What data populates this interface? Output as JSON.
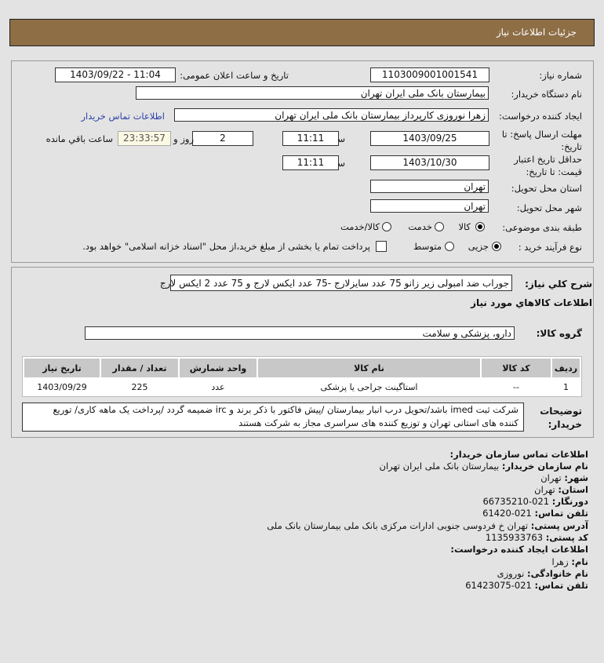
{
  "header": {
    "title": "جزئیات اطلاعات نیاز"
  },
  "form": {
    "need_number_label": "شماره نیاز:",
    "need_number": "1103009001001541",
    "announce_label": "تاریخ و ساعت اعلان عمومی:",
    "announce_value": "1403/09/22 - 11:04",
    "buyer_label": "نام دستگاه خریدار:",
    "buyer": "بیمارستان بانک ملی ایران تهران",
    "requester_label": "ایجاد کننده درخواست:",
    "requester": "زهرا نوروزی کارپرداز بیمارستان بانک ملی ایران تهران",
    "contact_link": "اطلاعات تماس خریدار",
    "deadline_label_1": "مهلت ارسال پاسخ: تا",
    "deadline_label_2": "تاریخ:",
    "deadline_date": "1403/09/25",
    "time_label": "ساعت",
    "deadline_time": "11:11",
    "days": "2",
    "days_label": "روز و",
    "remaining": "23:33:57",
    "remaining_label": "ساعت باقي مانده",
    "validity_label_1": "حداقل تاریخ اعتبار",
    "validity_label_2": "قیمت: تا تاریخ:",
    "validity_date": "1403/10/30",
    "validity_time": "11:11",
    "province_label": "استان محل تحویل:",
    "province": "تهران",
    "city_label": "شهر محل تحویل:",
    "city": "تهران",
    "category_label": "طبقه بندی موضوعی:",
    "category_options": [
      "کالا",
      "خدمت",
      "کالا/خدمت"
    ],
    "category_selected": "کالا",
    "process_label": "نوع فرآیند خرید :",
    "process_options": [
      "جزیی",
      "متوسط"
    ],
    "process_selected": "جزیی",
    "payment_note": "پرداخت تمام یا بخشی از مبلغ خرید،از محل \"اسناد خزانه اسلامی\" خواهد بود."
  },
  "details": {
    "summary_label": "شرح کلي نياز:",
    "summary": "جوراب ضد امبولی زیر زانو 75 عدد سایزلارج -75 عدد ایکس لارج و 75 عدد 2 ایکس لارج",
    "goods_title": "اطلاعات کالاهاي مورد نياز",
    "group_label": "گروه کالا:",
    "group": "دارو، پزشکی و سلامت",
    "table": {
      "headers": [
        "ردیف",
        "کد کالا",
        "نام کالا",
        "واحد شمارش",
        "تعداد / مقدار",
        "تاریخ نیاز"
      ],
      "rows": [
        [
          "1",
          "--",
          "استاگینت جراحی یا پزشکی",
          "عدد",
          "225",
          "1403/09/29"
        ]
      ]
    },
    "notes_label_1": "توضیحات",
    "notes_label_2": "خریدار:",
    "notes_1": "شرکت ثبت imed باشد/تحویل درب انبار بیمارستان /پیش فاکتور با ذکر برند و irc ضمیمه گردد /پرداخت یک ماهه کاری/ توریع",
    "notes_2": "کننده های استانی تهران و توزیع کننده های سراسری مجاز به شرکت هستند"
  },
  "contact": {
    "title": "اطلاعات تماس سازمان خریدار:",
    "org_label": "نام سازمان خریدار:",
    "org": "بیمارستان بانک ملی ایران تهران",
    "city_label": "شهر:",
    "city": "تهران",
    "province_label": "استان:",
    "province": "تهران",
    "fax_label": "دورنگار:",
    "fax": "021-66735210",
    "phone_label": "تلفن تماس:",
    "phone": "021-61420",
    "address_label": "آدرس پستی:",
    "address": "تهران خ فردوسی جنوبی ادارات مرکزی بانک ملی بیمارستان بانک ملی",
    "postal_label": "کد پستی:",
    "postal": "1135933763",
    "creator_title": "اطلاعات ایجاد کننده درخواست:",
    "name_label": "نام:",
    "name": "زهرا",
    "family_label": "نام خانوادگی:",
    "family": "نوروزی",
    "cphone_label": "تلفن تماس:",
    "cphone": "021-61423075"
  }
}
